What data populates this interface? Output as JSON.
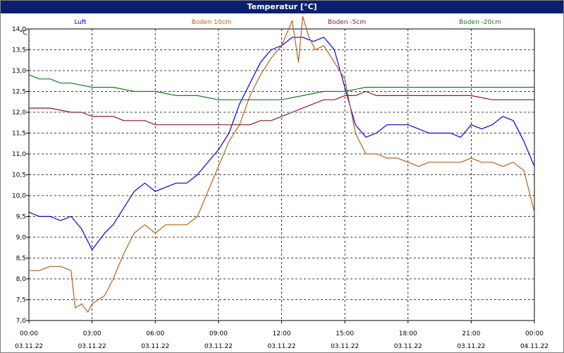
{
  "chart_data": {
    "type": "line",
    "title": "Temperatur [°C]",
    "ylabel": "°C",
    "ylim": [
      7.0,
      14.0
    ],
    "yticks": [
      "7,0",
      "7,5",
      "8,0",
      "8,5",
      "9,0",
      "9,5",
      "10,0",
      "10,5",
      "11,0",
      "11,5",
      "12,0",
      "12,5",
      "13,0",
      "13,5",
      "14,0"
    ],
    "xlim_hours": [
      0,
      24
    ],
    "xticks": [
      {
        "time": "00:00",
        "date": "03.11.22"
      },
      {
        "time": "03:00",
        "date": "03.11.22"
      },
      {
        "time": "06:00",
        "date": "03.11.22"
      },
      {
        "time": "09:00",
        "date": "03.11.22"
      },
      {
        "time": "12:00",
        "date": "03.11.22"
      },
      {
        "time": "15:00",
        "date": "03.11.22"
      },
      {
        "time": "18:00",
        "date": "03.11.22"
      },
      {
        "time": "21:00",
        "date": "03.11.22"
      },
      {
        "time": "00:00",
        "date": "04.11.22"
      }
    ],
    "grid": true,
    "legend_placement": "top",
    "series": [
      {
        "name": "Luft",
        "color": "#0000ee",
        "x": [
          0,
          0.5,
          1,
          1.5,
          2,
          2.5,
          2.8,
          3,
          3.3,
          3.6,
          4,
          4.5,
          5,
          5.5,
          6,
          6.5,
          7,
          7.5,
          8,
          8.5,
          9,
          9.5,
          10,
          10.5,
          11,
          11.5,
          12,
          12.5,
          13,
          13.5,
          14,
          14.5,
          15,
          15.5,
          16,
          16.5,
          17,
          17.5,
          18,
          18.5,
          19,
          19.5,
          20,
          20.5,
          21,
          21.5,
          22,
          22.5,
          23,
          23.5,
          24
        ],
        "values": [
          9.6,
          9.5,
          9.5,
          9.4,
          9.5,
          9.2,
          8.9,
          8.7,
          8.9,
          9.1,
          9.3,
          9.7,
          10.1,
          10.3,
          10.1,
          10.2,
          10.3,
          10.3,
          10.5,
          10.8,
          11.1,
          11.5,
          12.2,
          12.7,
          13.2,
          13.5,
          13.6,
          13.8,
          13.8,
          13.7,
          13.8,
          13.5,
          12.6,
          11.7,
          11.4,
          11.5,
          11.7,
          11.7,
          11.7,
          11.6,
          11.5,
          11.5,
          11.5,
          11.4,
          11.7,
          11.6,
          11.7,
          11.9,
          11.8,
          11.3,
          10.7
        ]
      },
      {
        "name": "Boden 10cm",
        "color": "#b8601f",
        "x": [
          0,
          0.5,
          1,
          1.5,
          2,
          2.2,
          2.5,
          2.8,
          3,
          3.3,
          3.6,
          4,
          4.5,
          5,
          5.5,
          6,
          6.5,
          7,
          7.5,
          8,
          8.5,
          9,
          9.5,
          10,
          10.5,
          11,
          11.5,
          12,
          12.5,
          12.8,
          13,
          13.3,
          13.6,
          14,
          14.5,
          15,
          15.5,
          16,
          16.5,
          17,
          17.5,
          18,
          18.5,
          19,
          19.5,
          20,
          20.5,
          21,
          21.5,
          22,
          22.5,
          23,
          23.5,
          24
        ],
        "values": [
          8.2,
          8.2,
          8.3,
          8.3,
          8.2,
          7.3,
          7.4,
          7.2,
          7.4,
          7.5,
          7.6,
          8.0,
          8.6,
          9.1,
          9.3,
          9.1,
          9.3,
          9.3,
          9.3,
          9.5,
          10.1,
          10.7,
          11.3,
          11.7,
          12.4,
          12.9,
          13.3,
          13.6,
          14.2,
          13.2,
          14.3,
          13.8,
          13.5,
          13.6,
          13.2,
          12.8,
          11.5,
          11.0,
          11.0,
          10.9,
          10.9,
          10.8,
          10.7,
          10.8,
          10.8,
          10.8,
          10.8,
          10.9,
          10.8,
          10.8,
          10.7,
          10.8,
          10.6,
          9.6
        ]
      },
      {
        "name": "Boden -5cm",
        "color": "#8b1c1c",
        "x": [
          0,
          1,
          2,
          2.5,
          3,
          3.5,
          4,
          4.5,
          5,
          5.5,
          6,
          7,
          8,
          9,
          10,
          10.5,
          11,
          11.5,
          12,
          12.5,
          13,
          13.5,
          14,
          14.5,
          15,
          15.5,
          16,
          16.5,
          17,
          18,
          19,
          20,
          21,
          22,
          23,
          24
        ],
        "values": [
          12.1,
          12.1,
          12.0,
          12.0,
          11.9,
          11.9,
          11.9,
          11.8,
          11.8,
          11.8,
          11.7,
          11.7,
          11.7,
          11.7,
          11.7,
          11.7,
          11.8,
          11.8,
          11.9,
          12.0,
          12.1,
          12.2,
          12.3,
          12.3,
          12.4,
          12.4,
          12.5,
          12.4,
          12.4,
          12.4,
          12.4,
          12.4,
          12.4,
          12.3,
          12.3,
          12.3
        ]
      },
      {
        "name": "Boden -20cm",
        "color": "#1a7a1a",
        "x": [
          0,
          0.5,
          1,
          1.5,
          2,
          3,
          4,
          5,
          6,
          7,
          8,
          9,
          10,
          11,
          12,
          13,
          14,
          15,
          16,
          17,
          18,
          19,
          20,
          21,
          22,
          23,
          24
        ],
        "values": [
          12.9,
          12.8,
          12.8,
          12.7,
          12.7,
          12.6,
          12.6,
          12.5,
          12.5,
          12.4,
          12.4,
          12.3,
          12.3,
          12.3,
          12.3,
          12.4,
          12.5,
          12.5,
          12.6,
          12.6,
          12.6,
          12.6,
          12.6,
          12.6,
          12.6,
          12.6,
          12.6
        ]
      }
    ]
  },
  "colors": {
    "title_bar": "#0a1f6e",
    "grid": "#000000",
    "axis": "#000000"
  }
}
